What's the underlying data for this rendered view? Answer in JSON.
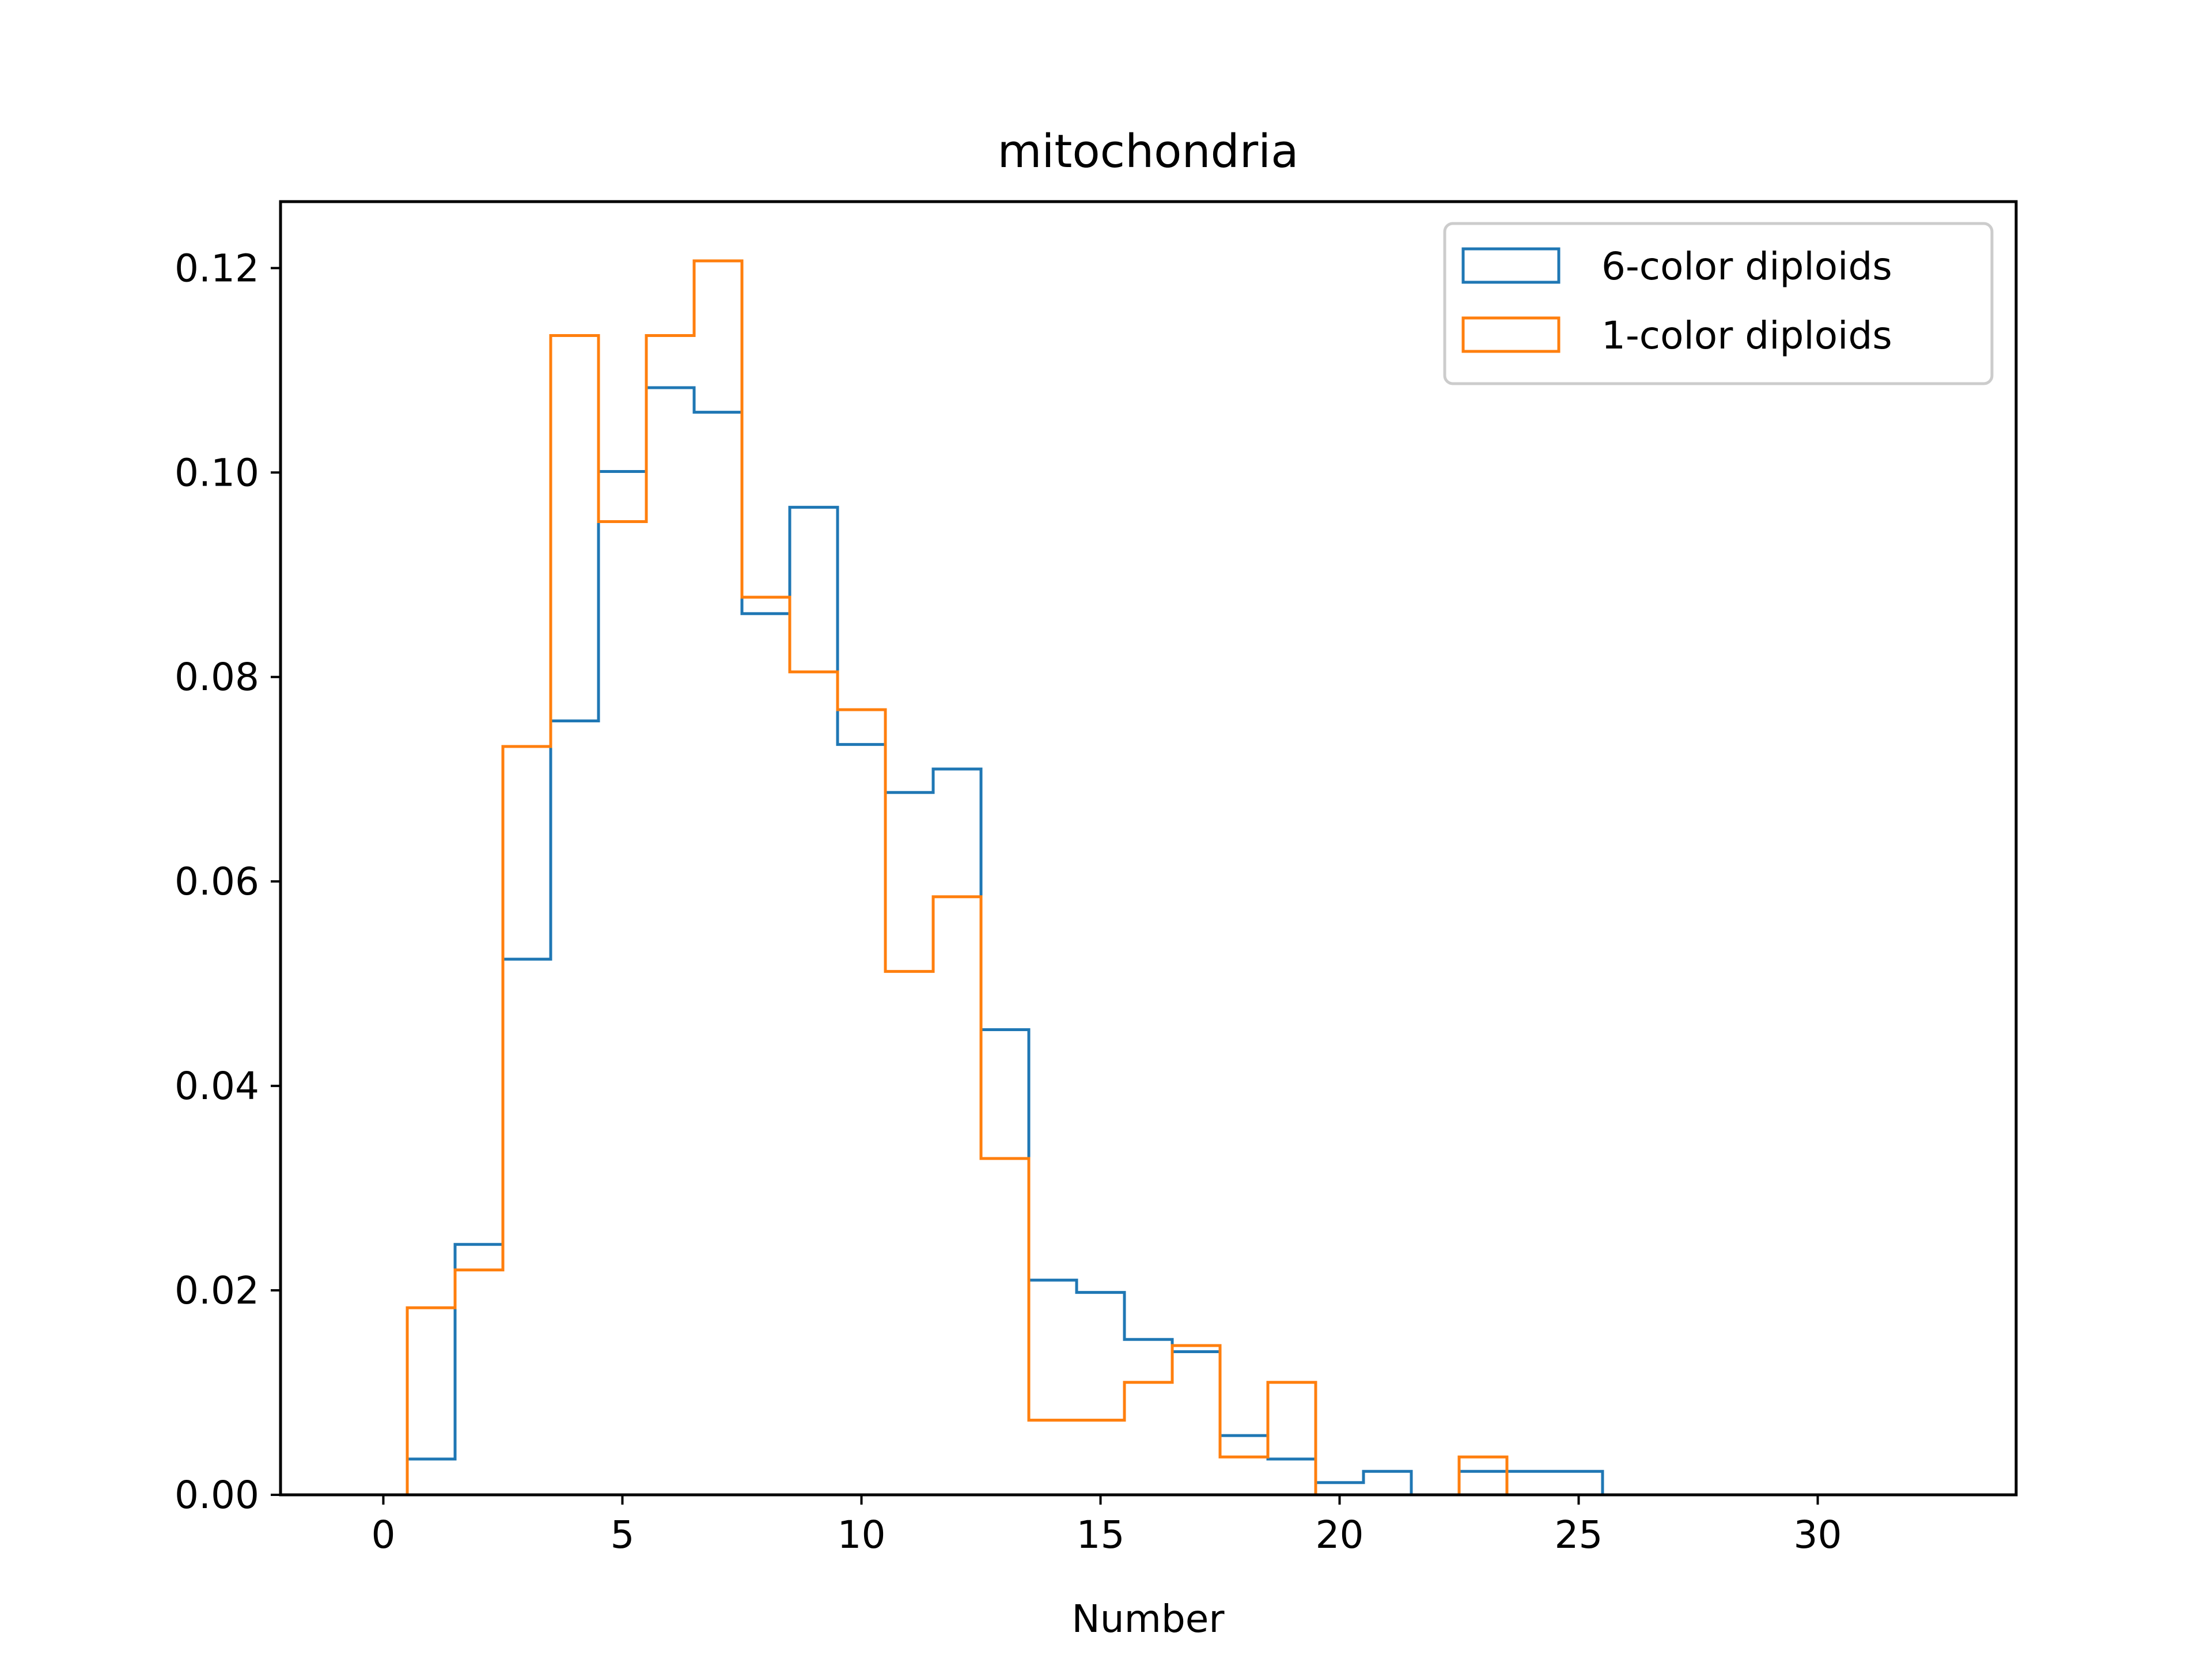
{
  "chart_data": {
    "type": "histogram",
    "title": "mitochondria",
    "xlabel": "Number",
    "ylabel": "",
    "xlim": [
      -2.15,
      34.15
    ],
    "ylim": [
      0,
      0.1265
    ],
    "xticks": [
      0,
      5,
      10,
      15,
      20,
      25,
      30
    ],
    "xtick_labels": [
      "0",
      "5",
      "10",
      "15",
      "20",
      "25",
      "30"
    ],
    "yticks": [
      0,
      0.02,
      0.04,
      0.06,
      0.08,
      0.1,
      0.12
    ],
    "ytick_labels": [
      "0.00",
      "0.02",
      "0.04",
      "0.06",
      "0.08",
      "0.10",
      "0.12"
    ],
    "grid": false,
    "legend_position": "top-right",
    "histtype": "step",
    "series": [
      {
        "name": "6-color diploids",
        "color": "#1f77b4",
        "bin_edges": [
          0.5,
          1.5,
          2.5,
          3.5,
          4.5,
          5.5,
          6.5,
          7.5,
          8.5,
          9.5,
          10.5,
          11.5,
          12.5,
          13.5,
          14.5,
          15.5,
          16.5,
          17.5,
          18.5,
          19.5,
          20.5,
          21.5,
          22.5,
          23.5,
          24.5,
          25.5,
          26.5,
          27.5,
          28.5,
          29.5,
          30.5,
          31.5,
          32.5
        ],
        "values": [
          0.0035,
          0.0245,
          0.0524,
          0.0757,
          0.1001,
          0.1083,
          0.1059,
          0.0862,
          0.0966,
          0.0734,
          0.0687,
          0.071,
          0.0455,
          0.021,
          0.0198,
          0.0152,
          0.014,
          0.0058,
          0.0035,
          0.0012,
          0.0023,
          0.0,
          0.0023,
          0.0023,
          0.0023,
          0.0,
          0.0,
          0.0,
          0.0,
          0.0,
          0.0,
          0.0
        ]
      },
      {
        "name": "1-color diploids",
        "color": "#ff7f0e",
        "bin_edges": [
          -0.5,
          0.5,
          1.5,
          2.5,
          3.5,
          4.5,
          5.5,
          6.5,
          7.5,
          8.5,
          9.5,
          10.5,
          11.5,
          12.5,
          13.5,
          14.5,
          15.5,
          16.5,
          17.5,
          18.5,
          19.5,
          20.5,
          21.5,
          22.5,
          23.5,
          24.5,
          25.5,
          26.5,
          27.5
        ],
        "values": [
          0.0,
          0.0183,
          0.022,
          0.0732,
          0.1134,
          0.0952,
          0.1134,
          0.1207,
          0.0878,
          0.0805,
          0.0768,
          0.0512,
          0.0585,
          0.0329,
          0.0073,
          0.0073,
          0.011,
          0.0146,
          0.0037,
          0.011,
          0.0,
          0.0,
          0.0,
          0.0037,
          0.0,
          0.0,
          0.0,
          0.0
        ]
      }
    ]
  }
}
